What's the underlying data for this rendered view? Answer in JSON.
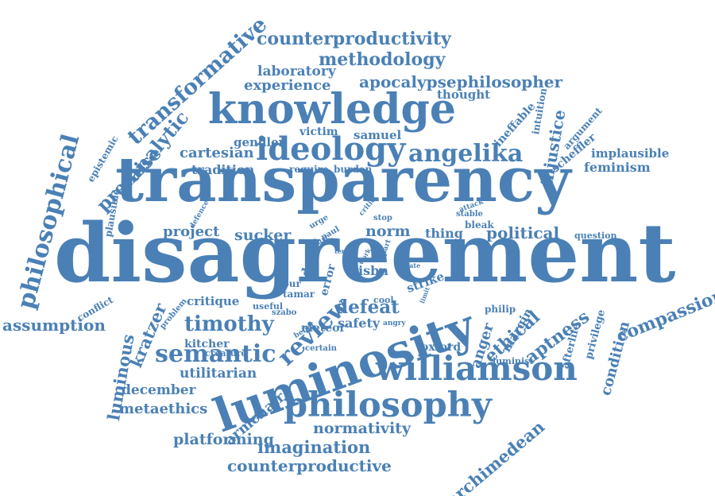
{
  "color": "#4a80b5",
  "words": [
    "transparency",
    "disagreement",
    "luminosity",
    "knowledge",
    "ideology",
    "williamson",
    "philosophy",
    "philosophical",
    "transformative",
    "semantic",
    "angelika",
    "premise",
    "analytic",
    "counterproductivity",
    "methodology",
    "apocalypsephilosopher",
    "experience",
    "laboratory",
    "counterproductive",
    "imagination",
    "platforming",
    "normativity",
    "armchair",
    "metaethics",
    "december",
    "utilitarian",
    "timothy",
    "review",
    "kratzer",
    "luminous",
    "assumption",
    "compassion",
    "condition",
    "aptness",
    "ethical",
    "anger",
    "archimedean",
    "defeat",
    "political",
    "project",
    "sucker",
    "norm",
    "thing",
    "injustice",
    "feminism",
    "implausible",
    "scheffler",
    "ineffable",
    "intuition",
    "argument",
    "thought",
    "samuel",
    "gendler",
    "victim",
    "cartesian",
    "tradition",
    "epistemic",
    "plausible",
    "require",
    "burden",
    "cool",
    "isbn",
    "stop",
    "bleak",
    "question",
    "stable",
    "attack",
    "strike",
    "meteor",
    "safety",
    "critique",
    "szabo",
    "tamar",
    "hour",
    "useful",
    "death",
    "error",
    "conflict",
    "problem",
    "kitcher",
    "creature",
    "oxford",
    "margin",
    "privilege",
    "afterlife",
    "philip",
    "luminist",
    "certain",
    "angry",
    "belief",
    "critic",
    "urge",
    "paul",
    "hurt",
    "term",
    "work",
    "part",
    "state",
    "limit",
    "defence"
  ]
}
